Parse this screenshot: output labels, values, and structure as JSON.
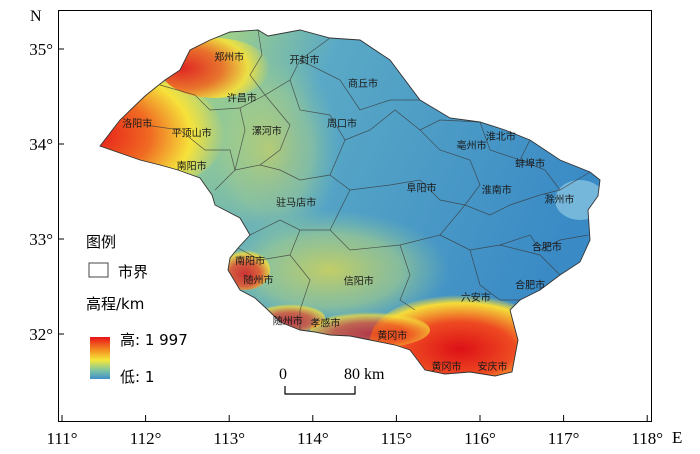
{
  "axes": {
    "north_label": "N",
    "east_label": "E",
    "x_ticks": [
      {
        "value": 111,
        "label": "111°"
      },
      {
        "value": 112,
        "label": "112°"
      },
      {
        "value": 113,
        "label": "113°"
      },
      {
        "value": 114,
        "label": "114°"
      },
      {
        "value": 115,
        "label": "115°"
      },
      {
        "value": 116,
        "label": "116°"
      },
      {
        "value": 117,
        "label": "117°"
      },
      {
        "value": 118,
        "label": "118°"
      }
    ],
    "y_ticks": [
      {
        "value": 35,
        "label": "35°"
      },
      {
        "value": 34,
        "label": "34°"
      },
      {
        "value": 33,
        "label": "33°"
      },
      {
        "value": 32,
        "label": "32°"
      }
    ]
  },
  "legend": {
    "title": "图例",
    "boundary_label": "市界",
    "elevation_title": "高程/km",
    "high_label": "高: 1 997",
    "low_label": "低: 1",
    "colors": {
      "high": "#e8121a",
      "mid": "#f5e83a",
      "low": "#3f8fc9"
    }
  },
  "scale_bar": {
    "start_label": "0",
    "end_label": "80 km"
  },
  "cities": [
    {
      "name": "郑州市",
      "lon": 113.0,
      "lat": 34.88
    },
    {
      "name": "开封市",
      "lon": 113.9,
      "lat": 34.85
    },
    {
      "name": "商丘市",
      "lon": 114.6,
      "lat": 34.6
    },
    {
      "name": "许昌市",
      "lon": 113.15,
      "lat": 34.45
    },
    {
      "name": "洛阳市",
      "lon": 111.9,
      "lat": 34.18
    },
    {
      "name": "平顶山市",
      "lon": 112.55,
      "lat": 34.08
    },
    {
      "name": "漯河市",
      "lon": 113.45,
      "lat": 34.1
    },
    {
      "name": "周口市",
      "lon": 114.35,
      "lat": 34.18
    },
    {
      "name": "淮北市",
      "lon": 116.25,
      "lat": 34.04
    },
    {
      "name": "亳州市",
      "lon": 115.9,
      "lat": 33.95
    },
    {
      "name": "蚌埠市",
      "lon": 116.6,
      "lat": 33.76
    },
    {
      "name": "南阳市",
      "lon": 112.55,
      "lat": 33.73
    },
    {
      "name": "阜阳市",
      "lon": 115.3,
      "lat": 33.5
    },
    {
      "name": "淮南市",
      "lon": 116.2,
      "lat": 33.48
    },
    {
      "name": "滁州市",
      "lon": 116.95,
      "lat": 33.38
    },
    {
      "name": "驻马店市",
      "lon": 113.8,
      "lat": 33.35
    },
    {
      "name": "合肥市",
      "lon": 116.8,
      "lat": 32.88
    },
    {
      "name": "南阳市",
      "lon": 113.25,
      "lat": 32.73
    },
    {
      "name": "随州市",
      "lon": 113.35,
      "lat": 32.53
    },
    {
      "name": "信阳市",
      "lon": 114.55,
      "lat": 32.52
    },
    {
      "name": "六安市",
      "lon": 115.95,
      "lat": 32.35
    },
    {
      "name": "合肥市",
      "lon": 116.6,
      "lat": 32.48
    },
    {
      "name": "随州市",
      "lon": 113.7,
      "lat": 32.1
    },
    {
      "name": "孝感市",
      "lon": 114.15,
      "lat": 32.08
    },
    {
      "name": "黄冈市",
      "lon": 114.95,
      "lat": 31.95
    },
    {
      "name": "黄冈市",
      "lon": 115.6,
      "lat": 31.62
    },
    {
      "name": "安庆市",
      "lon": 116.15,
      "lat": 31.62
    }
  ]
}
